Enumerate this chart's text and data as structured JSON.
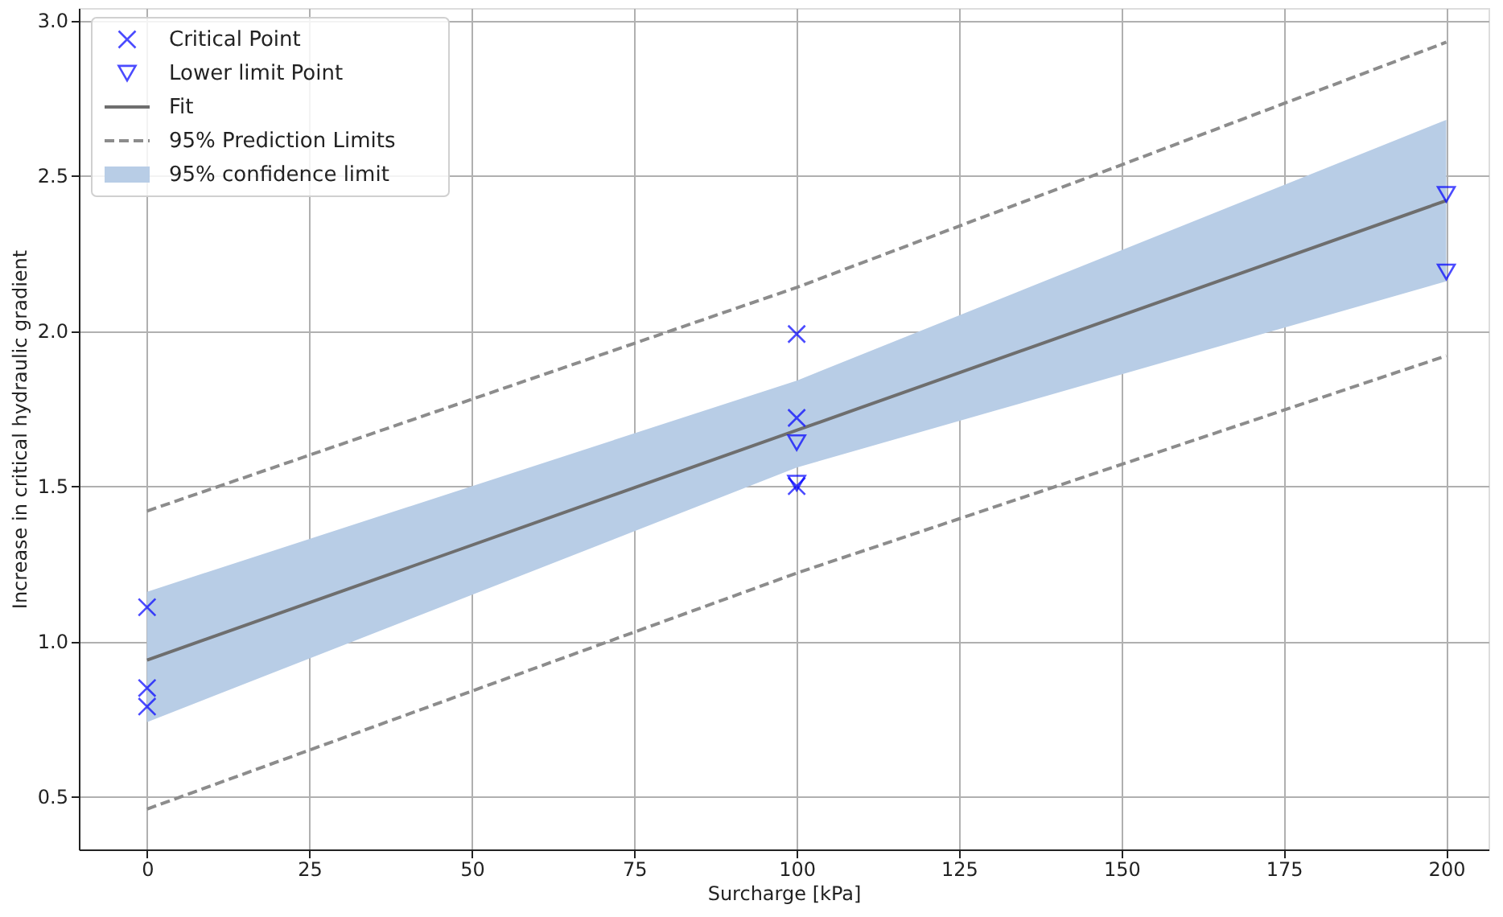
{
  "chart_data": {
    "type": "scatter",
    "xlabel": "Surcharge [kPa]",
    "ylabel": "Increase in critical hydraulic gradient",
    "xlim": [
      -10.5,
      206.5
    ],
    "ylim": [
      0.33,
      3.04
    ],
    "xticks": [
      0,
      25,
      50,
      75,
      100,
      125,
      150,
      175,
      200
    ],
    "yticks": [
      {
        "value": 0.5,
        "label": "0.5"
      },
      {
        "value": 1.0,
        "label": "1.0"
      },
      {
        "value": 1.5,
        "label": "1.5"
      },
      {
        "value": 2.0,
        "label": "2.0"
      },
      {
        "value": 2.5,
        "label": "2.5"
      },
      {
        "value": 3.0,
        "label": "3.0"
      }
    ],
    "grid": true,
    "legend": "top left",
    "annotations": [
      "95% confidence limit"
    ],
    "series": [
      {
        "name": "Critical Point",
        "marker": "cross",
        "color": "#0000ff",
        "x": [
          0,
          0,
          0,
          100,
          100,
          100
        ],
        "values": [
          1.11,
          0.85,
          0.79,
          1.99,
          1.72,
          1.5
        ]
      },
      {
        "name": "Lower limit Point",
        "marker": "triangle",
        "color": "#0000ff",
        "x": [
          100,
          100,
          200,
          200
        ],
        "values": [
          1.64,
          1.51,
          2.44,
          2.19
        ]
      },
      {
        "name": "Fit",
        "type": "line",
        "line_style": "solid",
        "color": "#6e6e6e",
        "x": [
          0,
          100,
          200
        ],
        "values": [
          0.94,
          1.68,
          2.42
        ],
        "lower": [
          0.74,
          1.56,
          2.16
        ],
        "upper": [
          1.16,
          1.84,
          2.68
        ]
      },
      {
        "name": "95% Prediction Limits",
        "type": "line",
        "line_style": "dashed",
        "color": "#8c8c8c",
        "x": [
          0,
          100,
          200
        ],
        "values": [
          1.42,
          2.14,
          2.93
        ]
      },
      {
        "type": "line",
        "line_style": "dashed",
        "color": "#8c8c8c",
        "x": [
          0,
          100,
          200
        ],
        "values": [
          0.46,
          1.22,
          1.92
        ]
      }
    ]
  }
}
